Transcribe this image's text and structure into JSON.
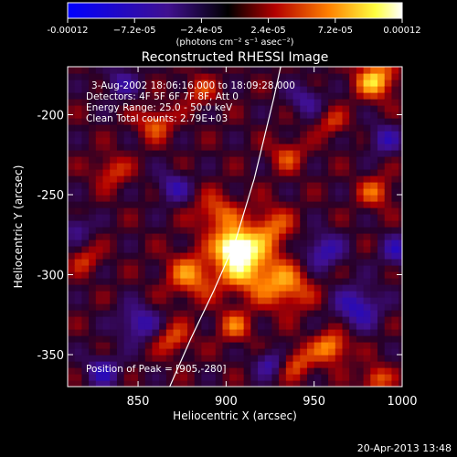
{
  "chart_data": {
    "type": "heatmap",
    "title": "Reconstructed RHESSI Image",
    "xlabel": "Heliocentric X (arcsec)",
    "ylabel": "Heliocentric Y (arcsec)",
    "xlim": [
      810,
      1000
    ],
    "ylim": [
      -370,
      -170
    ],
    "x_ticks": [
      850,
      900,
      950,
      1000
    ],
    "y_ticks": [
      -350,
      -300,
      -250,
      -200
    ],
    "info_lines": [
      "3-Aug-2002 18:06:16.000 to 18:09:28.000",
      "Detectors: 4F 5F 6F 7F 8F, Att 0",
      "Energy Range: 25.0 - 50.0 keV",
      "Clean     Total counts: 2.79E+03"
    ],
    "peak_text": "Position of Peak = [905,-280]",
    "peak": {
      "x": 905,
      "y": -280
    },
    "colorbar": {
      "min": -0.00012,
      "max": 0.00012,
      "tick_labels": [
        "-0.00012",
        "−7.2e-05",
        "−2.4e-05",
        "2.4e-05",
        "7.2e-05",
        "0.00012"
      ],
      "unit_label": "(photons cm⁻² s⁻¹ asec⁻²)",
      "colormap_stops": [
        "#0000ff",
        "#000000",
        "#b30000",
        "#ff8000",
        "#ffff40",
        "#ffffff"
      ]
    },
    "limb": {
      "x": [
        868,
        880,
        893,
        905,
        916,
        927,
        931
      ],
      "y": [
        -370,
        -340,
        -310,
        -280,
        -240,
        -190,
        -170
      ]
    },
    "blobs": [
      {
        "x": 905,
        "y": -282,
        "amp": 1.0,
        "sigma": 7
      },
      {
        "x": 912,
        "y": -295,
        "amp": 0.75,
        "sigma": 12
      },
      {
        "x": 880,
        "y": -300,
        "amp": 0.55,
        "sigma": 10
      },
      {
        "x": 935,
        "y": -308,
        "amp": 0.55,
        "sigma": 10
      },
      {
        "x": 925,
        "y": -270,
        "amp": 0.5,
        "sigma": 9
      },
      {
        "x": 895,
        "y": -262,
        "amp": 0.5,
        "sigma": 9
      },
      {
        "x": 985,
        "y": -178,
        "amp": 0.75,
        "sigma": 8
      },
      {
        "x": 985,
        "y": -248,
        "amp": 0.45,
        "sigma": 7
      },
      {
        "x": 860,
        "y": -205,
        "amp": 0.5,
        "sigma": 7
      },
      {
        "x": 960,
        "y": -345,
        "amp": 0.65,
        "sigma": 7
      },
      {
        "x": 985,
        "y": -365,
        "amp": 0.5,
        "sigma": 6
      },
      {
        "x": 905,
        "y": -332,
        "amp": 0.45,
        "sigma": 7
      },
      {
        "x": 835,
        "y": -235,
        "amp": 0.4,
        "sigma": 7
      },
      {
        "x": 935,
        "y": -225,
        "amp": 0.4,
        "sigma": 7
      },
      {
        "x": 870,
        "y": -340,
        "amp": 0.45,
        "sigma": 7
      },
      {
        "x": 940,
        "y": -355,
        "amp": 0.45,
        "sigma": 7
      },
      {
        "x": 960,
        "y": -205,
        "amp": 0.35,
        "sigma": 6
      },
      {
        "x": 820,
        "y": -290,
        "amp": 0.35,
        "sigma": 6
      },
      {
        "x": 885,
        "y": -185,
        "amp": 0.35,
        "sigma": 7
      },
      {
        "x": 955,
        "y": -285,
        "amp": -0.55,
        "sigma": 8
      },
      {
        "x": 975,
        "y": -320,
        "amp": -0.6,
        "sigma": 9
      },
      {
        "x": 850,
        "y": -330,
        "amp": -0.55,
        "sigma": 8
      },
      {
        "x": 945,
        "y": -190,
        "amp": -0.4,
        "sigma": 7
      },
      {
        "x": 830,
        "y": -360,
        "amp": -0.5,
        "sigma": 7
      },
      {
        "x": 870,
        "y": -245,
        "amp": -0.45,
        "sigma": 7
      },
      {
        "x": 990,
        "y": -215,
        "amp": -0.45,
        "sigma": 7
      },
      {
        "x": 925,
        "y": -355,
        "amp": -0.5,
        "sigma": 6
      },
      {
        "x": 840,
        "y": -180,
        "amp": -0.4,
        "sigma": 7
      },
      {
        "x": 998,
        "y": -285,
        "amp": -0.5,
        "sigma": 7
      },
      {
        "x": 815,
        "y": -270,
        "amp": -0.4,
        "sigma": 6
      }
    ]
  },
  "footer": {
    "timestamp": "20-Apr-2013 13:48"
  }
}
